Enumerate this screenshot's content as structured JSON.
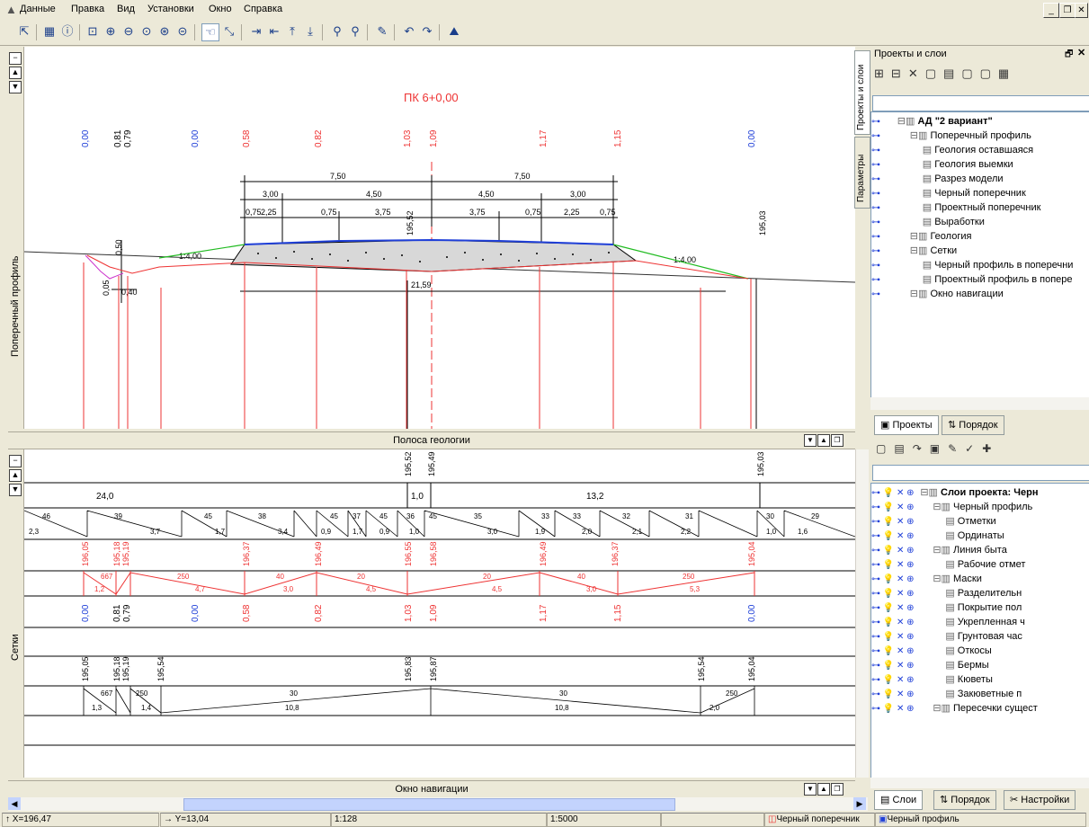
{
  "menu": [
    "Данные",
    "Правка",
    "Вид",
    "Установки",
    "Окно",
    "Справка"
  ],
  "main": {
    "side_label": "Поперечный профиль",
    "title": "ПК 6+0,00",
    "top_values_blue": [
      "0,00",
      "0,00",
      "0,00"
    ],
    "top_values_black": [
      "0,81",
      "0,79"
    ],
    "top_values_red": [
      "0,58",
      "0,82",
      "1,03",
      "1,09",
      "1,17",
      "1,15"
    ],
    "dims": {
      "d750a": "7,50",
      "d750b": "7,50",
      "d300a": "3,00",
      "d450a": "4,50",
      "d450b": "4,50",
      "d300b": "3,00",
      "d075a": "0,75",
      "d225a": "2,25",
      "d075b": "0,75",
      "d375a": "3,75",
      "d375b": "3,75",
      "d075c": "0,75",
      "d225b": "2,25",
      "d075d": "0,75",
      "d050": "0,50",
      "d005": "0,05",
      "d040": "0,40",
      "d2159": "21,59"
    },
    "slopes": {
      "left": "1:4,00",
      "right": "1:4,00"
    },
    "elev": {
      "e1": "195,52",
      "e2": "195,03"
    }
  },
  "geology_band": "Полоса геологии",
  "grids": {
    "side_label": "Сетки",
    "row1": [
      "195,52",
      "195,49",
      "195,03"
    ],
    "row2": [
      "24,0",
      "1,0",
      "13,2"
    ],
    "row3_top": [
      "46",
      "39",
      "45",
      "38",
      "45",
      "37",
      "45",
      "36",
      "45",
      "35",
      "33",
      "33",
      "32",
      "31",
      "30",
      "29"
    ],
    "row3_bot": [
      "2,3",
      "3,7",
      "1,7",
      "3,4",
      "0,9",
      "1,7",
      "0,9",
      "1,0",
      "3,0",
      "1,9",
      "2,0",
      "2,1",
      "2,2",
      "1,0",
      "1,6"
    ],
    "row4": [
      "196,05",
      "195,18",
      "195,19",
      "196,37",
      "196,49",
      "196,55",
      "196,58",
      "196,49",
      "196,37",
      "195,04"
    ],
    "row5_top": [
      "667",
      "250",
      "40",
      "20",
      "20",
      "40",
      "250"
    ],
    "row5_bot": [
      "1,2",
      "4,7",
      "3,0",
      "4,5",
      "4,5",
      "3,0",
      "5,3"
    ],
    "row6_blue": [
      "0,00",
      "0,00",
      "0,00"
    ],
    "row6_black": [
      "0,81",
      "0,79"
    ],
    "row6_red": [
      "0,58",
      "0,82",
      "1,03",
      "1,09",
      "1,17",
      "1,15"
    ],
    "row7": [
      "195,05",
      "195,18",
      "195,19",
      "195,54",
      "195,83",
      "195,87",
      "195,54",
      "195,04"
    ],
    "row8_top": [
      "667",
      "250",
      "30",
      "30",
      "250"
    ],
    "row8_bot": [
      "1,3",
      "1,4",
      "10,8",
      "10,8",
      "2,0"
    ]
  },
  "nav_band": "Окно навигации",
  "right": {
    "title": "Проекты и слои",
    "vtabs": [
      "Проекты и слои",
      "Параметры"
    ],
    "tree": [
      {
        "indent": 0,
        "label": "АД \"2 вариант\"",
        "bold": true
      },
      {
        "indent": 1,
        "label": "Поперечный профиль"
      },
      {
        "indent": 2,
        "label": "Геология оставшаяся"
      },
      {
        "indent": 2,
        "label": "Геология выемки"
      },
      {
        "indent": 2,
        "label": "Разрез модели"
      },
      {
        "indent": 2,
        "label": "Черный поперечник"
      },
      {
        "indent": 2,
        "label": "Проектный поперечник"
      },
      {
        "indent": 2,
        "label": "Выработки"
      },
      {
        "indent": 1,
        "label": "Геология"
      },
      {
        "indent": 1,
        "label": "Сетки"
      },
      {
        "indent": 2,
        "label": "Черный профиль в поперечни"
      },
      {
        "indent": 2,
        "label": "Проектный профиль в попере"
      },
      {
        "indent": 1,
        "label": "Окно навигации"
      }
    ],
    "tabs1": [
      "Проекты",
      "Порядок"
    ],
    "layers": [
      {
        "indent": 0,
        "label": "Слои проекта: Черн",
        "bold": true
      },
      {
        "indent": 1,
        "label": "Черный профиль"
      },
      {
        "indent": 2,
        "label": "Отметки"
      },
      {
        "indent": 2,
        "label": "Ординаты"
      },
      {
        "indent": 1,
        "label": "Линия быта"
      },
      {
        "indent": 2,
        "label": "Рабочие отмет"
      },
      {
        "indent": 1,
        "label": "Маски"
      },
      {
        "indent": 2,
        "label": "Разделительн"
      },
      {
        "indent": 2,
        "label": "Покрытие пол"
      },
      {
        "indent": 2,
        "label": "Укрепленная ч"
      },
      {
        "indent": 2,
        "label": "Грунтовая час"
      },
      {
        "indent": 2,
        "label": "Откосы"
      },
      {
        "indent": 2,
        "label": "Бермы"
      },
      {
        "indent": 2,
        "label": "Кюветы"
      },
      {
        "indent": 2,
        "label": "Закюветные п"
      },
      {
        "indent": 1,
        "label": "Пересечки сущест"
      }
    ],
    "tabs2": [
      "Слои",
      "Порядок",
      "Настройки"
    ]
  },
  "status": {
    "x": "↑ X=196,47",
    "y": "→ Y=13,04",
    "scale1": "1:128",
    "scale2": "1:5000",
    "layer1": "Черный поперечник",
    "layer2": "Черный профиль"
  }
}
